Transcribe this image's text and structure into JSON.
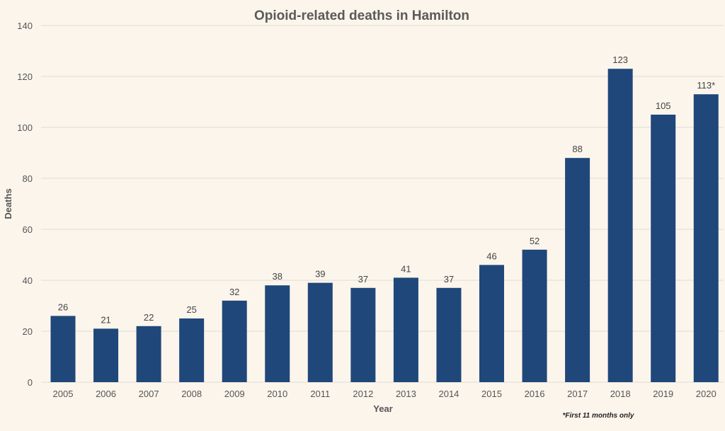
{
  "colors": {
    "background": "#fbf5ec",
    "bar": "#1f477a",
    "grid": "#e2ddd4"
  },
  "chart_data": {
    "type": "bar",
    "title": "Opioid-related deaths in Hamilton",
    "xlabel": "Year",
    "ylabel": "Deaths",
    "categories": [
      "2005",
      "2006",
      "2007",
      "2008",
      "2009",
      "2010",
      "2011",
      "2012",
      "2013",
      "2014",
      "2015",
      "2016",
      "2017",
      "2018",
      "2019",
      "2020"
    ],
    "values": [
      26,
      21,
      22,
      25,
      32,
      38,
      39,
      37,
      41,
      37,
      46,
      52,
      88,
      123,
      105,
      113
    ],
    "data_labels": [
      "26",
      "21",
      "22",
      "25",
      "32",
      "38",
      "39",
      "37",
      "41",
      "37",
      "46",
      "52",
      "88",
      "123",
      "105",
      "113*"
    ],
    "ylim": [
      0,
      140
    ],
    "yticks": [
      0,
      20,
      40,
      60,
      80,
      100,
      120,
      140
    ],
    "grid": true,
    "legend": false,
    "footnote": "*First 11 months only"
  }
}
